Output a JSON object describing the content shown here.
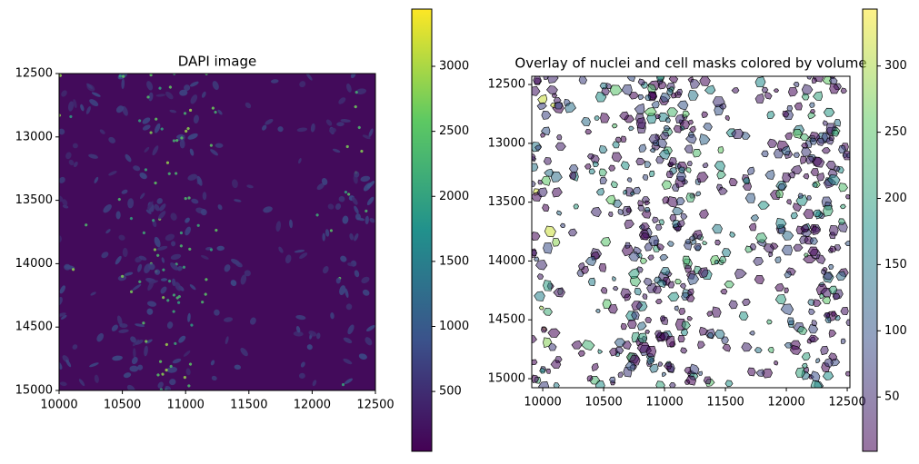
{
  "chart_data": [
    {
      "type": "image",
      "title": "DAPI image",
      "colormap": "viridis",
      "xlim": [
        10000,
        12500
      ],
      "ylim": [
        15000,
        12500
      ],
      "xticks": [
        10000,
        10500,
        11000,
        11500,
        12000,
        12500
      ],
      "yticks": [
        12500,
        13000,
        13500,
        14000,
        14500,
        15000
      ],
      "clim": [
        40,
        3440
      ],
      "cticks": [
        500,
        1000,
        1500,
        2000,
        2500,
        3000
      ]
    },
    {
      "type": "overlay",
      "title": "Overlay of nuclei and cell masks colored by volume",
      "colormap": "viridis",
      "xlim": [
        9910,
        12522
      ],
      "ylim": [
        15077,
        12430
      ],
      "xticks": [
        10000,
        10500,
        11000,
        11500,
        12000,
        12500
      ],
      "yticks": [
        12500,
        13000,
        13500,
        14000,
        14500,
        15000
      ],
      "clim": [
        9,
        343
      ],
      "cticks": [
        50,
        100,
        150,
        200,
        250,
        300
      ]
    }
  ]
}
